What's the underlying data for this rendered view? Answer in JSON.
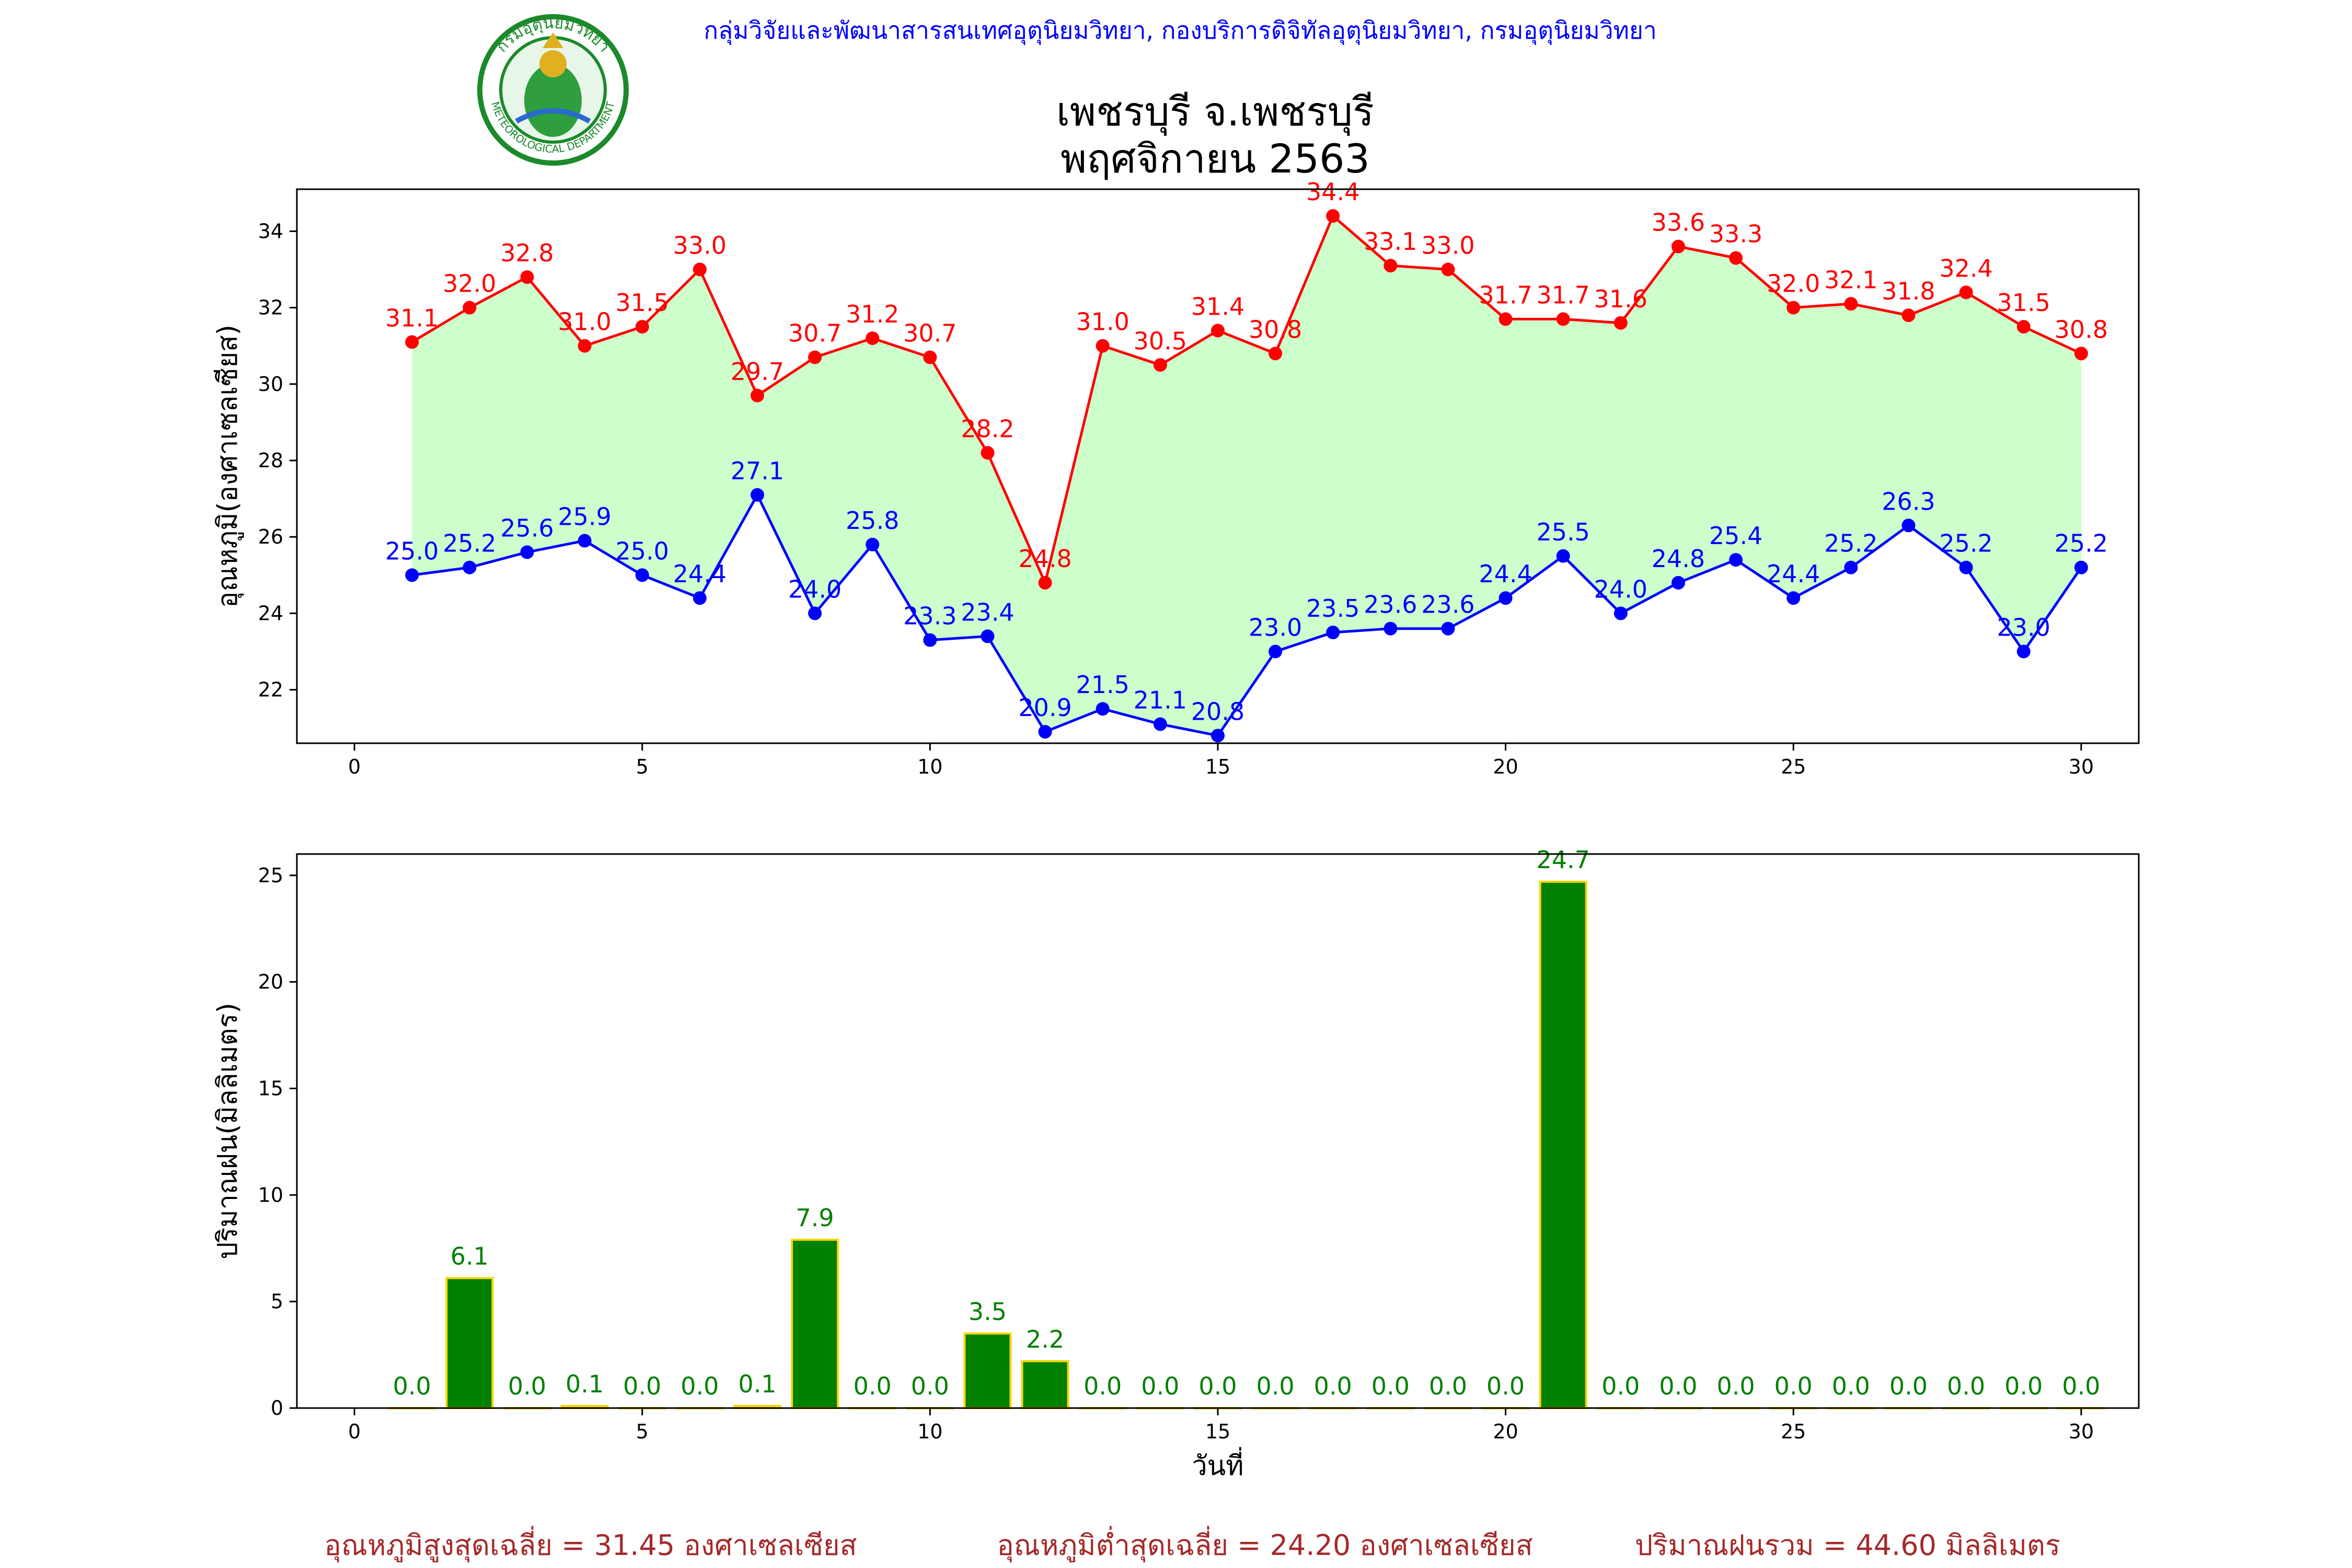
{
  "header": {
    "agency": "กลุ่มวิจัยและพัฒนาสารสนเทศอุตุนิยมวิทยา, กองบริการดิจิทัลอุตุนิยมวิทยา, กรมอุตุนิยมวิทยา",
    "title_line1": "เพชรบุรี จ.เพชรบุรี",
    "title_line2": "พฤศจิกายน 2563",
    "logo_text_top": "กรมอุตุนิยมวิทยา",
    "logo_text_bottom": "METEOROLOGICAL DEPARTMENT"
  },
  "colors": {
    "max_temp": "#ff0000",
    "min_temp": "#0000ff",
    "fill": "#ccffcc",
    "rain_bar": "#008000",
    "rain_edge": "#ffd700",
    "rain_label": "#008000",
    "header_text": "#0000ff",
    "summary_text": "#a52a2a"
  },
  "chart_data": [
    {
      "type": "line",
      "title": "",
      "xlabel": "",
      "ylabel": "อุณหภูมิ(องศาเซลเซียส)",
      "xlim": [
        -1,
        31
      ],
      "ylim": [
        20.6,
        35.1
      ],
      "xticks": [
        0,
        5,
        10,
        15,
        20,
        25,
        30
      ],
      "yticks": [
        22,
        24,
        26,
        28,
        30,
        32,
        34
      ],
      "grid": false,
      "fill_between": true,
      "x": [
        1,
        2,
        3,
        4,
        5,
        6,
        7,
        8,
        9,
        10,
        11,
        12,
        13,
        14,
        15,
        16,
        17,
        18,
        19,
        20,
        21,
        22,
        23,
        24,
        25,
        26,
        27,
        28,
        29,
        30
      ],
      "series": [
        {
          "key": "max",
          "values": [
            31.1,
            32.0,
            32.8,
            31.0,
            31.5,
            33.0,
            29.7,
            30.7,
            31.2,
            30.7,
            28.2,
            24.8,
            31.0,
            30.5,
            31.4,
            30.8,
            34.4,
            33.1,
            33.0,
            31.7,
            31.7,
            31.6,
            33.6,
            33.3,
            32.0,
            32.1,
            31.8,
            32.4,
            31.5,
            30.8
          ]
        },
        {
          "key": "min",
          "values": [
            25.0,
            25.2,
            25.6,
            25.9,
            25.0,
            24.4,
            27.1,
            24.0,
            25.8,
            23.3,
            23.4,
            20.9,
            21.5,
            21.1,
            20.8,
            23.0,
            23.5,
            23.6,
            23.6,
            24.4,
            25.5,
            24.0,
            24.8,
            25.4,
            24.4,
            25.2,
            26.3,
            25.2,
            23.0,
            25.2
          ]
        }
      ]
    },
    {
      "type": "bar",
      "title": "",
      "xlabel": "วันที่",
      "ylabel": "ปริมาณฝน(มิลลิเมตร)",
      "xlim": [
        -1,
        31
      ],
      "ylim": [
        0,
        26
      ],
      "xticks": [
        0,
        5,
        10,
        15,
        20,
        25,
        30
      ],
      "yticks": [
        0,
        5,
        10,
        15,
        20,
        25
      ],
      "grid": false,
      "x": [
        1,
        2,
        3,
        4,
        5,
        6,
        7,
        8,
        9,
        10,
        11,
        12,
        13,
        14,
        15,
        16,
        17,
        18,
        19,
        20,
        21,
        22,
        23,
        24,
        25,
        26,
        27,
        28,
        29,
        30
      ],
      "values": [
        0.0,
        6.1,
        0.0,
        0.1,
        0.0,
        0.0,
        0.1,
        7.9,
        0.0,
        0.0,
        3.5,
        2.2,
        0.0,
        0.0,
        0.0,
        0.0,
        0.0,
        0.0,
        0.0,
        0.0,
        24.7,
        0.0,
        0.0,
        0.0,
        0.0,
        0.0,
        0.0,
        0.0,
        0.0,
        0.0
      ]
    }
  ],
  "summary": {
    "avg_max": "อุณหภูมิสูงสุดเฉลี่ย = 31.45 องศาเซลเซียส",
    "avg_min": "อุณหภูมิต่ำสุดเฉลี่ย = 24.20 องศาเซลเซียส",
    "total_rain": "ปริมาณฝนรวม = 44.60 มิลลิเมตร"
  }
}
